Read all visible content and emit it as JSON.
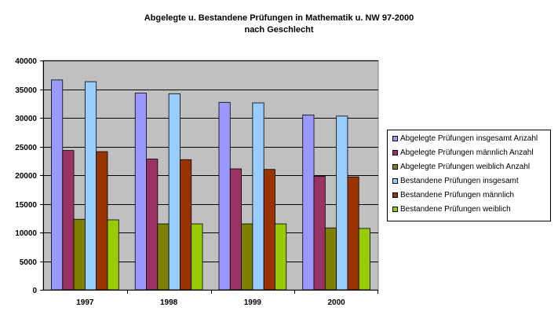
{
  "chart_data": {
    "type": "bar",
    "title_line1": "Abgelegte u. Bestandene Prüfungen in Mathematik u. NW 97-2000",
    "title_line2": "nach Geschlecht",
    "xlabel": "",
    "ylabel": "",
    "categories": [
      "1997",
      "1998",
      "1999",
      "2000"
    ],
    "ylim": [
      0,
      40000
    ],
    "yticks": [
      0,
      5000,
      10000,
      15000,
      20000,
      25000,
      30000,
      35000,
      40000
    ],
    "grid": true,
    "legend_position": "right",
    "plot_background": "#c0c0c0",
    "series": [
      {
        "name": "Abgelegte Prüfungen insgesamt Anzahl",
        "color": "#9999ff",
        "values": [
          36600,
          34300,
          32700,
          30500
        ]
      },
      {
        "name": "Abgelegte Prüfungen männlich Anzahl",
        "color": "#993366",
        "values": [
          24300,
          22800,
          21100,
          19800
        ]
      },
      {
        "name": "Abgelegte Prüfungen weiblich Anzahl",
        "color": "#808000",
        "values": [
          12300,
          11500,
          11500,
          10800
        ]
      },
      {
        "name": "Bestandene Prüfungen insgesamt",
        "color": "#99ccff",
        "values": [
          36300,
          34200,
          32600,
          30300
        ]
      },
      {
        "name": "Bestandene Prüfungen männlich",
        "color": "#993300",
        "values": [
          24100,
          22700,
          21000,
          19700
        ]
      },
      {
        "name": "Bestandene Prüfungen weiblich",
        "color": "#99cc00",
        "values": [
          12200,
          11500,
          11500,
          10700
        ]
      }
    ]
  }
}
